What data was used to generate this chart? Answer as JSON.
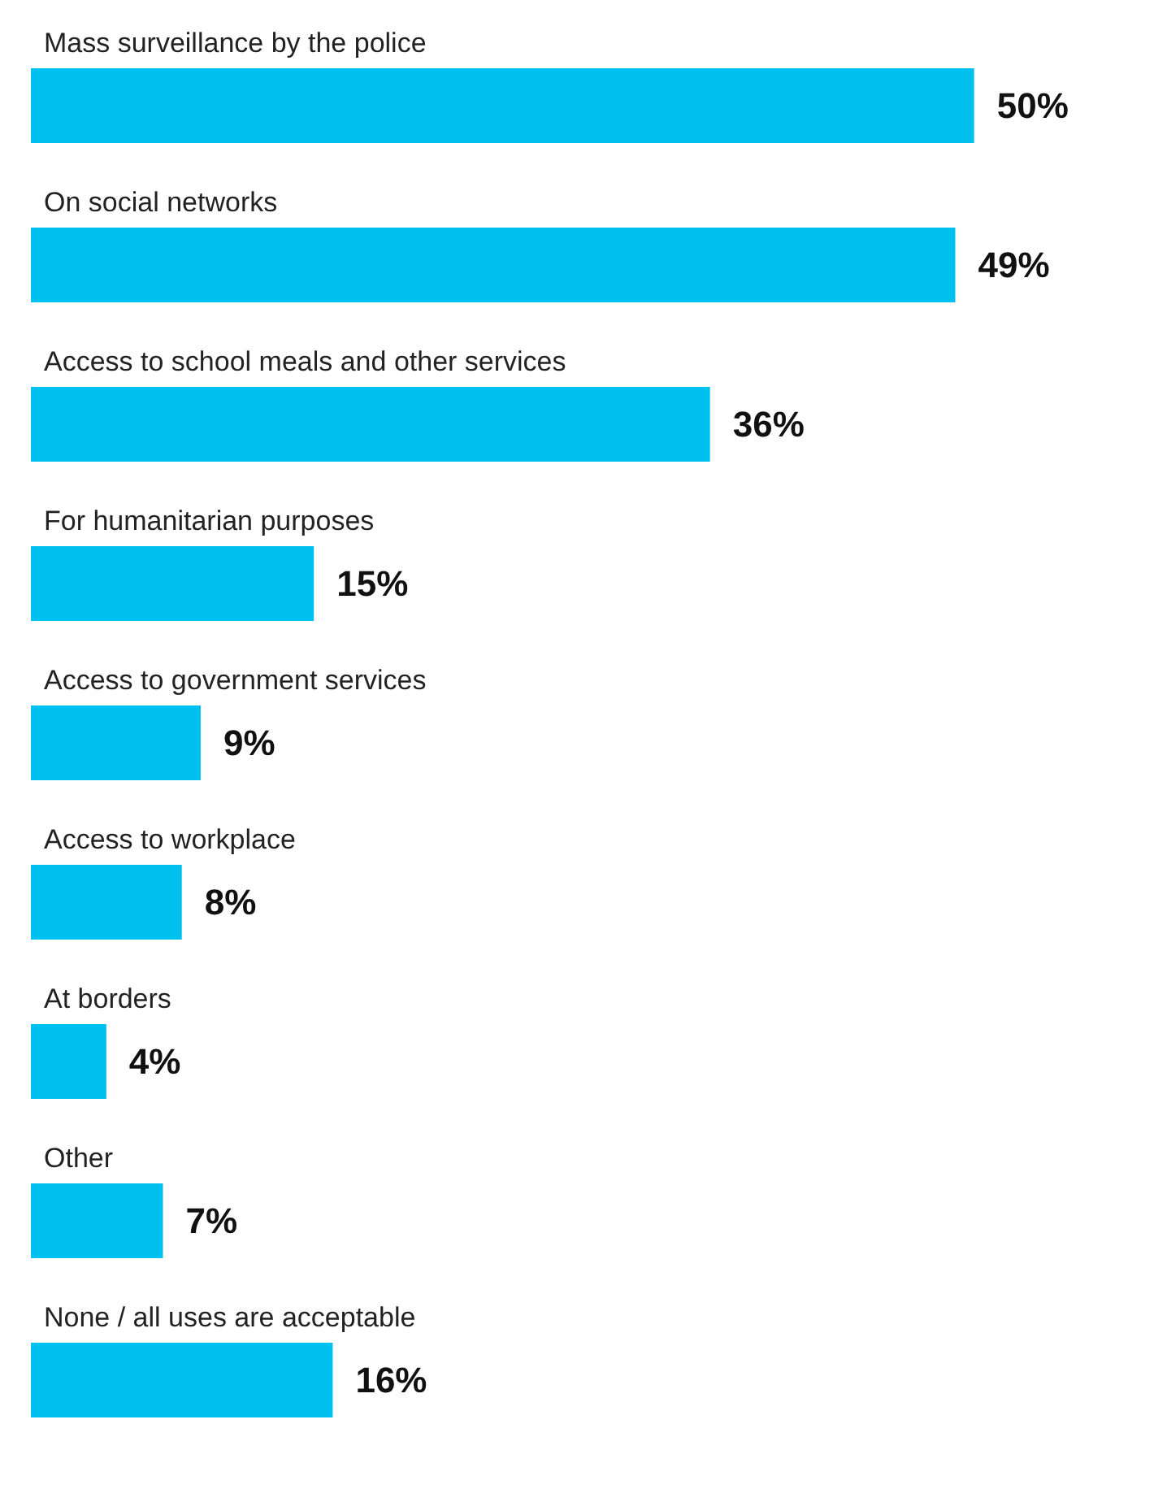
{
  "chart_data": {
    "type": "bar",
    "orientation": "horizontal",
    "categories": [
      "Mass surveillance by the police",
      "On social networks",
      "Access to school meals and other services",
      "For humanitarian purposes",
      "Access to government services",
      "Access to workplace",
      "At borders",
      "Other",
      "None / all uses are acceptable"
    ],
    "values": [
      50,
      49,
      36,
      15,
      9,
      8,
      4,
      7,
      16
    ],
    "value_labels": [
      "50%",
      "49%",
      "36%",
      "15%",
      "9%",
      "8%",
      "4%",
      "7%",
      "16%"
    ],
    "color": "#00c0f0"
  }
}
